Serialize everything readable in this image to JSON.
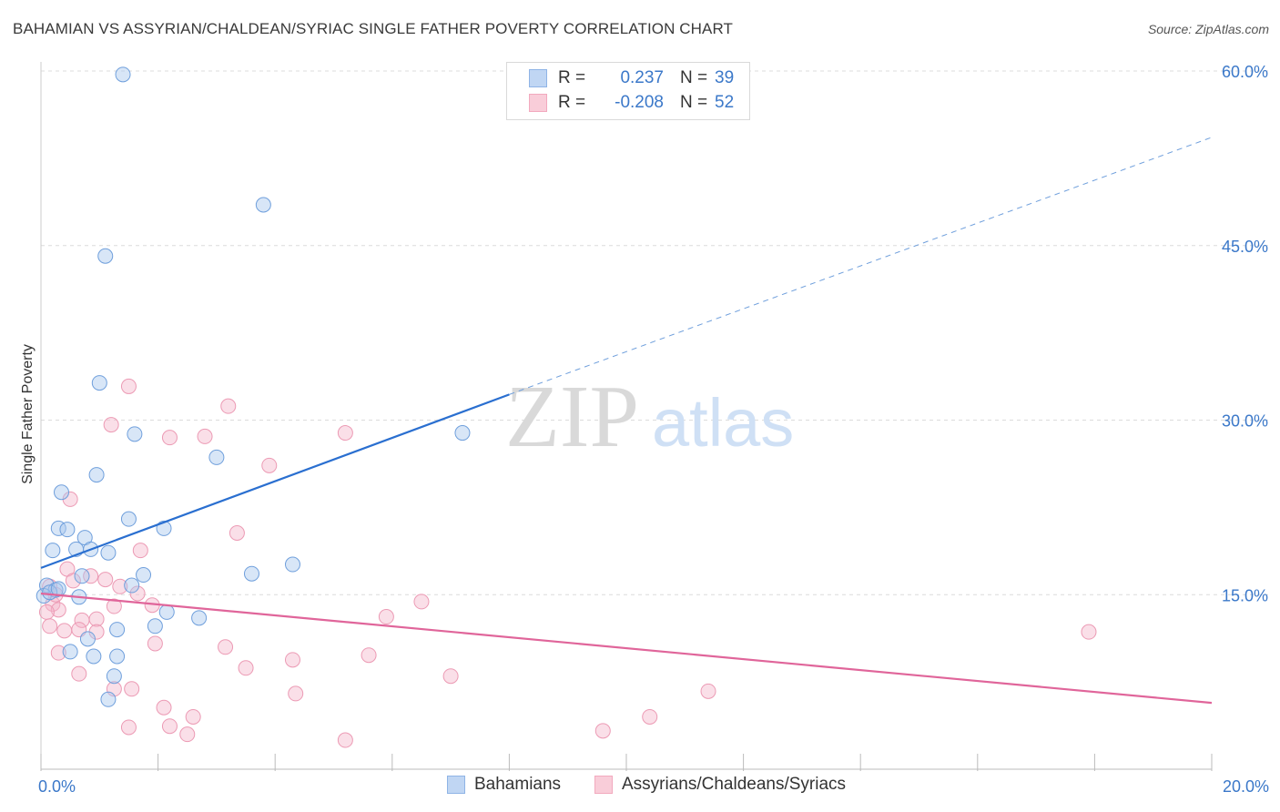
{
  "title": "BAHAMIAN VS ASSYRIAN/CHALDEAN/SYRIAC SINGLE FATHER POVERTY CORRELATION CHART",
  "source": "Source: ZipAtlas.com",
  "watermark": {
    "zip": "ZIP",
    "atlas": "atlas"
  },
  "legend": {
    "r_label": "R =",
    "n_label": "N =",
    "series": [
      {
        "r": "0.237",
        "n": "39"
      },
      {
        "r": "-0.208",
        "n": "52"
      }
    ]
  },
  "chart_data": {
    "type": "scatter",
    "title": "BAHAMIAN VS ASSYRIAN/CHALDEAN/SYRIAC SINGLE FATHER POVERTY CORRELATION CHART",
    "xlabel": "",
    "ylabel": "Single Father Poverty",
    "xlim": [
      0,
      20
    ],
    "ylim": [
      0,
      60
    ],
    "x_tick_labels": [
      "0.0%",
      "20.0%"
    ],
    "y_ticks": [
      15,
      30,
      45,
      60
    ],
    "y_tick_labels": [
      "15.0%",
      "30.0%",
      "45.0%",
      "60.0%"
    ],
    "grid": true,
    "colors": {
      "bahamians": "#a9c7ee",
      "bahamians_line": "#2a6fd0",
      "assyrians": "#f5b8cb",
      "assyrians_line": "#e0659a",
      "tick_text": "#3b78c9"
    },
    "series": [
      {
        "name": "Bahamians",
        "trend": {
          "x0": 0,
          "y0": 17.3,
          "x1": 8,
          "y1": 32.2,
          "dashed_to_x": 20,
          "dashed_to_y": 54.3
        },
        "points": [
          [
            1.4,
            59.7
          ],
          [
            3.8,
            48.5
          ],
          [
            1.1,
            44.1
          ],
          [
            1.0,
            33.2
          ],
          [
            1.6,
            28.8
          ],
          [
            3.0,
            26.8
          ],
          [
            7.2,
            28.9
          ],
          [
            0.95,
            25.3
          ],
          [
            0.35,
            23.8
          ],
          [
            1.5,
            21.5
          ],
          [
            0.3,
            20.7
          ],
          [
            0.45,
            20.6
          ],
          [
            0.75,
            19.9
          ],
          [
            2.1,
            20.7
          ],
          [
            0.2,
            18.8
          ],
          [
            0.6,
            18.9
          ],
          [
            0.85,
            18.9
          ],
          [
            1.15,
            18.6
          ],
          [
            4.3,
            17.6
          ],
          [
            3.6,
            16.8
          ],
          [
            1.75,
            16.7
          ],
          [
            0.7,
            16.6
          ],
          [
            0.1,
            15.8
          ],
          [
            0.25,
            15.4
          ],
          [
            1.55,
            15.8
          ],
          [
            0.05,
            14.9
          ],
          [
            0.65,
            14.8
          ],
          [
            2.15,
            13.5
          ],
          [
            1.95,
            12.3
          ],
          [
            2.7,
            13.0
          ],
          [
            1.3,
            12.0
          ],
          [
            0.8,
            11.2
          ],
          [
            0.5,
            10.1
          ],
          [
            0.9,
            9.7
          ],
          [
            1.3,
            9.7
          ],
          [
            1.25,
            8.0
          ],
          [
            1.15,
            6.0
          ],
          [
            0.15,
            15.2
          ],
          [
            0.3,
            15.5
          ]
        ]
      },
      {
        "name": "Assyrians/Chaldeans/Syriacs",
        "trend": {
          "x0": 0,
          "y0": 15.1,
          "x1": 20,
          "y1": 5.7
        },
        "points": [
          [
            1.5,
            32.9
          ],
          [
            3.2,
            31.2
          ],
          [
            1.2,
            29.6
          ],
          [
            5.2,
            28.9
          ],
          [
            2.2,
            28.5
          ],
          [
            2.8,
            28.6
          ],
          [
            3.9,
            26.1
          ],
          [
            0.5,
            23.2
          ],
          [
            3.35,
            20.3
          ],
          [
            1.7,
            18.8
          ],
          [
            0.45,
            17.2
          ],
          [
            0.85,
            16.6
          ],
          [
            1.1,
            16.3
          ],
          [
            1.35,
            15.7
          ],
          [
            1.65,
            15.1
          ],
          [
            0.55,
            16.2
          ],
          [
            0.15,
            15.7
          ],
          [
            6.5,
            14.4
          ],
          [
            0.2,
            14.2
          ],
          [
            1.25,
            14.0
          ],
          [
            1.9,
            14.1
          ],
          [
            0.3,
            13.7
          ],
          [
            0.1,
            13.5
          ],
          [
            5.9,
            13.1
          ],
          [
            0.7,
            12.8
          ],
          [
            0.95,
            12.9
          ],
          [
            0.15,
            12.3
          ],
          [
            0.4,
            11.9
          ],
          [
            0.65,
            12.0
          ],
          [
            0.95,
            11.8
          ],
          [
            1.95,
            10.8
          ],
          [
            3.15,
            10.5
          ],
          [
            17.9,
            11.8
          ],
          [
            0.3,
            10.0
          ],
          [
            4.3,
            9.4
          ],
          [
            5.6,
            9.8
          ],
          [
            3.5,
            8.7
          ],
          [
            0.65,
            8.2
          ],
          [
            7.0,
            8.0
          ],
          [
            1.25,
            6.9
          ],
          [
            1.55,
            6.9
          ],
          [
            4.35,
            6.5
          ],
          [
            11.4,
            6.7
          ],
          [
            2.1,
            5.3
          ],
          [
            2.6,
            4.5
          ],
          [
            10.4,
            4.5
          ],
          [
            1.5,
            3.6
          ],
          [
            2.2,
            3.7
          ],
          [
            2.5,
            3.0
          ],
          [
            9.6,
            3.3
          ],
          [
            5.2,
            2.5
          ],
          [
            0.25,
            15.0
          ]
        ]
      }
    ]
  }
}
